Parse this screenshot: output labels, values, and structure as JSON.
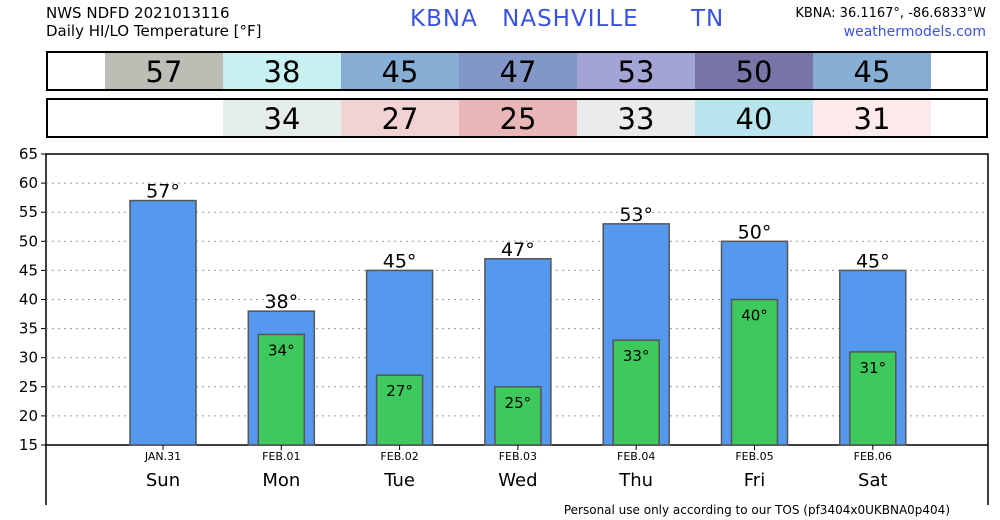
{
  "header": {
    "line1": "NWS NDFD 2021013116",
    "line2": "Daily HI/LO Temperature [°F]",
    "station": "KBNA",
    "city": "NASHVILLE",
    "state": "TN",
    "coords": "KBNA: 36.1167°, -86.6833°W",
    "site": "weathermodels.com"
  },
  "hi_row": [
    {
      "value": "57",
      "color": "#bdbdb6"
    },
    {
      "value": "38",
      "color": "#c7f0f0"
    },
    {
      "value": "45",
      "color": "#86aed5"
    },
    {
      "value": "47",
      "color": "#8296c8"
    },
    {
      "value": "53",
      "color": "#a3a3d6"
    },
    {
      "value": "50",
      "color": "#7876a8"
    },
    {
      "value": "45",
      "color": "#86aed5"
    }
  ],
  "lo_row": [
    {
      "value": "",
      "color": "#ffffff"
    },
    {
      "value": "34",
      "color": "#e5ecec"
    },
    {
      "value": "27",
      "color": "#f2d2d2"
    },
    {
      "value": "25",
      "color": "#e8b6b6"
    },
    {
      "value": "33",
      "color": "#eaecec"
    },
    {
      "value": "40",
      "color": "#b8e5ed"
    },
    {
      "value": "31",
      "color": "#fdeaea"
    }
  ],
  "chart_data": {
    "type": "bar",
    "categories": [
      "Sun",
      "Mon",
      "Tue",
      "Wed",
      "Thu",
      "Fri",
      "Sat"
    ],
    "dates": [
      "JAN.31",
      "FEB.01",
      "FEB.02",
      "FEB.03",
      "FEB.04",
      "FEB.05",
      "FEB.06"
    ],
    "series": [
      {
        "values": [
          57,
          38,
          45,
          47,
          53,
          50,
          45
        ],
        "color": "#5599ee"
      },
      {
        "values": [
          null,
          34,
          27,
          25,
          33,
          40,
          31
        ],
        "color": "#3ec95c"
      }
    ],
    "ylim": [
      15,
      65
    ],
    "yticks": [
      15,
      20,
      25,
      30,
      35,
      40,
      45,
      50,
      55,
      60,
      65
    ],
    "grid": true,
    "degree_symbol": "°"
  },
  "footer": "Personal use only according to our TOS (pf3404x0UKBNA0p404)"
}
